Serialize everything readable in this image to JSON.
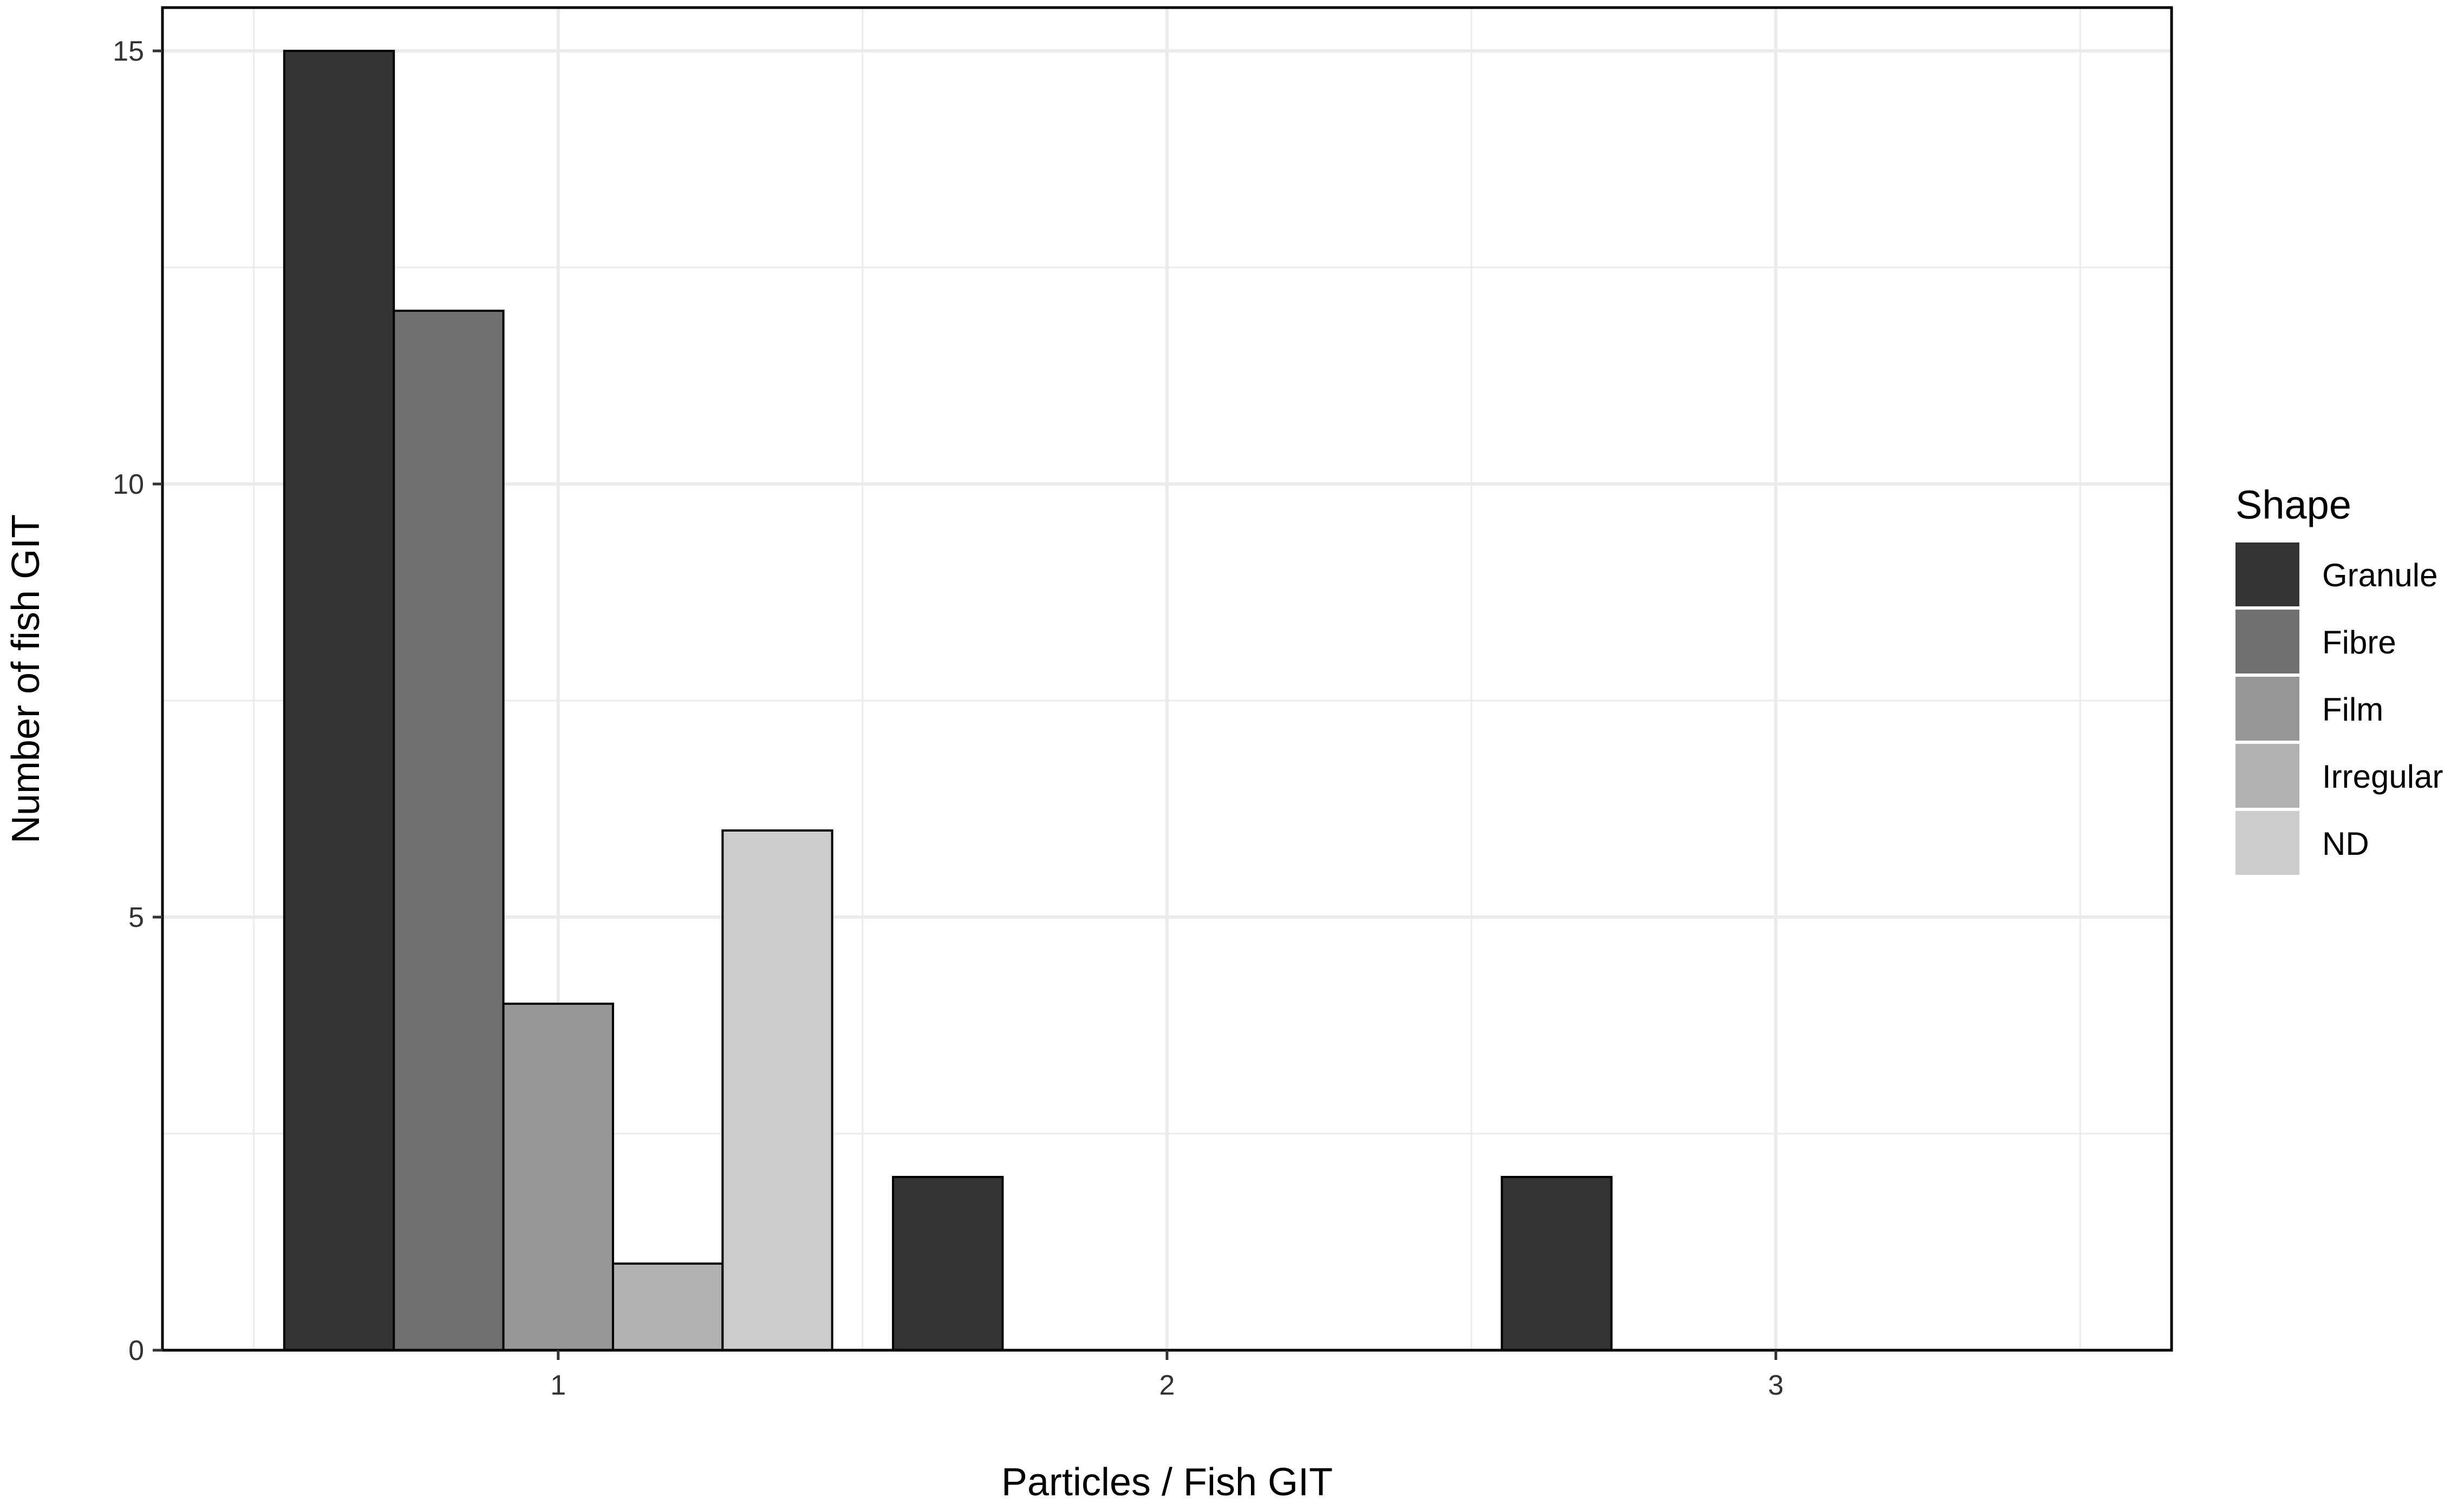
{
  "chart_data": {
    "type": "bar",
    "categories": [
      "1",
      "2",
      "3"
    ],
    "series": [
      {
        "name": "Granule",
        "values": [
          15,
          2,
          2
        ],
        "color": "#333333"
      },
      {
        "name": "Fibre",
        "values": [
          12,
          0,
          0
        ],
        "color": "#707070"
      },
      {
        "name": "Film",
        "values": [
          4,
          0,
          0
        ],
        "color": "#969696"
      },
      {
        "name": "Irregular",
        "values": [
          1,
          0,
          0
        ],
        "color": "#b1b1b1"
      },
      {
        "name": "ND",
        "values": [
          6,
          0,
          0
        ],
        "color": "#cccccc"
      }
    ],
    "xlabel": "Particles / Fish GIT",
    "ylabel": "Number of fish GIT",
    "ylim": [
      0,
      15.5
    ],
    "yticks": [
      "0",
      "5",
      "10",
      "15"
    ],
    "legend_title": "Shape",
    "legend_position": "right",
    "grid": true
  }
}
